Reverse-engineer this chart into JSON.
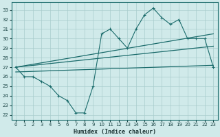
{
  "xlabel": "Humidex (Indice chaleur)",
  "ylabel": "",
  "xlim": [
    -0.5,
    23.5
  ],
  "ylim": [
    21.5,
    33.8
  ],
  "yticks": [
    22,
    23,
    24,
    25,
    26,
    27,
    28,
    29,
    30,
    31,
    32,
    33
  ],
  "xticks": [
    0,
    1,
    2,
    3,
    4,
    5,
    6,
    7,
    8,
    9,
    10,
    11,
    12,
    13,
    14,
    15,
    16,
    17,
    18,
    19,
    20,
    21,
    22,
    23
  ],
  "background_color": "#d0eaea",
  "grid_color": "#a8cccc",
  "line_color": "#1a6b6b",
  "series": {
    "main": {
      "x": [
        0,
        1,
        2,
        3,
        4,
        5,
        6,
        7,
        8,
        9,
        10,
        11,
        12,
        13,
        14,
        15,
        16,
        17,
        18,
        19,
        20,
        21,
        22,
        23
      ],
      "y": [
        27,
        26,
        26,
        25.5,
        25,
        24,
        23.5,
        22.2,
        22.2,
        25,
        30.5,
        31,
        30,
        29,
        31,
        32.5,
        33.2,
        32.2,
        31.5,
        32,
        30,
        30,
        30,
        27
      ]
    },
    "upper_band": {
      "x": [
        0,
        23
      ],
      "y": [
        27,
        30.5
      ]
    },
    "mid_band": {
      "x": [
        0,
        23
      ],
      "y": [
        27,
        29.2
      ]
    },
    "lower_band": {
      "x": [
        0,
        23
      ],
      "y": [
        26.5,
        27.2
      ]
    }
  }
}
